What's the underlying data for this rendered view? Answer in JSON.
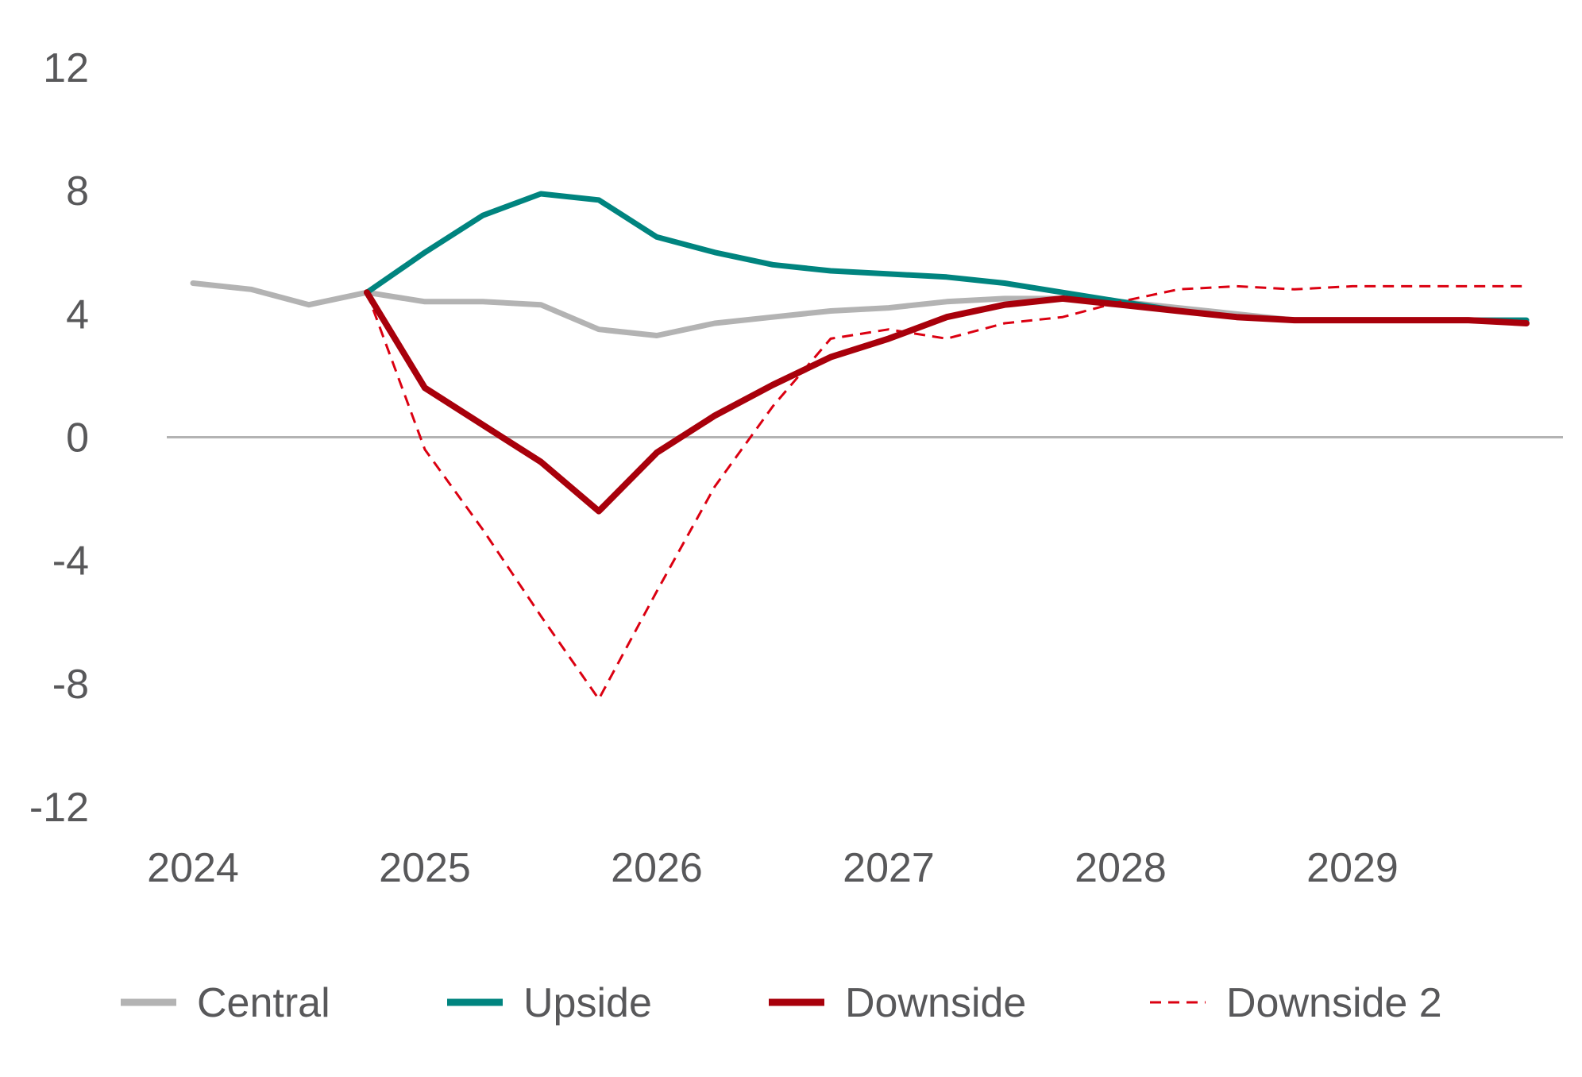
{
  "chart_data": {
    "type": "line",
    "title": "",
    "xlabel": "",
    "ylabel": "",
    "ylim": [
      -12,
      12
    ],
    "yticks": [
      12,
      8,
      4,
      0,
      -4,
      -8,
      -12
    ],
    "ytick_labels": [
      "12",
      "8",
      "4",
      "0",
      "-4",
      "-8",
      "-12"
    ],
    "xlim": [
      2024,
      2029.9
    ],
    "xticks": [
      2024,
      2025,
      2026,
      2027,
      2028,
      2029
    ],
    "xtick_labels": [
      "2024",
      "2025",
      "2026",
      "2027",
      "2028",
      "2029"
    ],
    "zero_line": true,
    "legend_position": "bottom",
    "series": [
      {
        "name": "Central",
        "color": "#b3b3b3",
        "style": "solid",
        "points": [
          [
            2024.0,
            5.0
          ],
          [
            2024.25,
            4.8
          ],
          [
            2024.5,
            4.3
          ],
          [
            2024.75,
            4.7
          ],
          [
            2025.0,
            4.4
          ],
          [
            2025.25,
            4.4
          ],
          [
            2025.5,
            4.3
          ],
          [
            2025.75,
            3.5
          ],
          [
            2026.0,
            3.3
          ],
          [
            2026.25,
            3.7
          ],
          [
            2026.5,
            3.9
          ],
          [
            2026.75,
            4.1
          ],
          [
            2027.0,
            4.2
          ],
          [
            2027.25,
            4.4
          ],
          [
            2027.5,
            4.5
          ],
          [
            2027.75,
            4.5
          ],
          [
            2028.0,
            4.4
          ],
          [
            2028.25,
            4.2
          ],
          [
            2028.5,
            4.0
          ],
          [
            2028.75,
            3.8
          ],
          [
            2029.0,
            3.8
          ],
          [
            2029.25,
            3.8
          ],
          [
            2029.5,
            3.8
          ],
          [
            2029.75,
            3.7
          ]
        ]
      },
      {
        "name": "Upside",
        "color": "#00847f",
        "style": "solid",
        "points": [
          [
            2024.75,
            4.7
          ],
          [
            2025.0,
            6.0
          ],
          [
            2025.25,
            7.2
          ],
          [
            2025.5,
            7.9
          ],
          [
            2025.75,
            7.7
          ],
          [
            2026.0,
            6.5
          ],
          [
            2026.25,
            6.0
          ],
          [
            2026.5,
            5.6
          ],
          [
            2026.75,
            5.4
          ],
          [
            2027.0,
            5.3
          ],
          [
            2027.25,
            5.2
          ],
          [
            2027.5,
            5.0
          ],
          [
            2027.75,
            4.7
          ],
          [
            2028.0,
            4.4
          ],
          [
            2028.25,
            4.1
          ],
          [
            2028.5,
            3.9
          ],
          [
            2028.75,
            3.8
          ],
          [
            2029.0,
            3.8
          ],
          [
            2029.25,
            3.8
          ],
          [
            2029.5,
            3.8
          ],
          [
            2029.75,
            3.8
          ]
        ]
      },
      {
        "name": "Downside",
        "color": "#a8000b",
        "style": "solid",
        "points": [
          [
            2024.75,
            4.7
          ],
          [
            2025.0,
            1.6
          ],
          [
            2025.25,
            0.4
          ],
          [
            2025.5,
            -0.8
          ],
          [
            2025.75,
            -2.4
          ],
          [
            2026.0,
            -0.5
          ],
          [
            2026.25,
            0.7
          ],
          [
            2026.5,
            1.7
          ],
          [
            2026.75,
            2.6
          ],
          [
            2027.0,
            3.2
          ],
          [
            2027.25,
            3.9
          ],
          [
            2027.5,
            4.3
          ],
          [
            2027.75,
            4.5
          ],
          [
            2028.0,
            4.3
          ],
          [
            2028.25,
            4.1
          ],
          [
            2028.5,
            3.9
          ],
          [
            2028.75,
            3.8
          ],
          [
            2029.0,
            3.8
          ],
          [
            2029.25,
            3.8
          ],
          [
            2029.5,
            3.8
          ],
          [
            2029.75,
            3.7
          ]
        ]
      },
      {
        "name": "Downside 2",
        "color": "#db0011",
        "style": "dashed",
        "points": [
          [
            2024.75,
            4.7
          ],
          [
            2025.0,
            -0.4
          ],
          [
            2025.25,
            -3.0
          ],
          [
            2025.5,
            -5.8
          ],
          [
            2025.75,
            -8.5
          ],
          [
            2026.0,
            -5.0
          ],
          [
            2026.25,
            -1.6
          ],
          [
            2026.5,
            1.0
          ],
          [
            2026.75,
            3.2
          ],
          [
            2027.0,
            3.5
          ],
          [
            2027.25,
            3.2
          ],
          [
            2027.5,
            3.7
          ],
          [
            2027.75,
            3.9
          ],
          [
            2028.0,
            4.4
          ],
          [
            2028.25,
            4.8
          ],
          [
            2028.5,
            4.9
          ],
          [
            2028.75,
            4.8
          ],
          [
            2029.0,
            4.9
          ],
          [
            2029.25,
            4.9
          ],
          [
            2029.5,
            4.9
          ],
          [
            2029.75,
            4.9
          ]
        ]
      }
    ]
  }
}
